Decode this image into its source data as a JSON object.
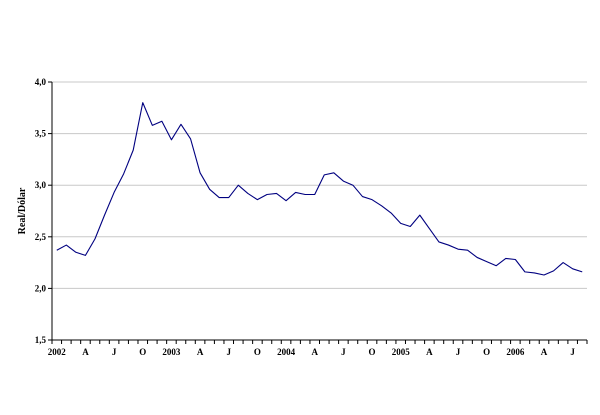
{
  "chart_data": {
    "type": "line",
    "title": "",
    "xlabel": "",
    "ylabel": "Real/Dólar",
    "ylim": [
      1.5,
      4.0
    ],
    "yticks": [
      "1,5",
      "2,0",
      "2,5",
      "3,0",
      "3,5",
      "4,0"
    ],
    "xtick_labels": [
      "2002",
      "A",
      "J",
      "O",
      "2003",
      "A",
      "J",
      "O",
      "2004",
      "A",
      "J",
      "O",
      "2005",
      "A",
      "J",
      "O",
      "2006",
      "A",
      "J"
    ],
    "grid": true,
    "colors": {
      "line": "#000080",
      "grid": "#c8c8c8",
      "axis": "#000000"
    },
    "series": [
      {
        "values": [
          2.37,
          2.42,
          2.35,
          2.32,
          2.48,
          2.71,
          2.93,
          3.11,
          3.34,
          3.8,
          3.58,
          3.62,
          3.44,
          3.59,
          3.45,
          3.12,
          2.96,
          2.88,
          2.88,
          3.0,
          2.92,
          2.86,
          2.91,
          2.92,
          2.85,
          2.93,
          2.91,
          2.91,
          3.1,
          3.12,
          3.04,
          3.0,
          2.89,
          2.86,
          2.8,
          2.73,
          2.63,
          2.6,
          2.71,
          2.58,
          2.45,
          2.42,
          2.38,
          2.37,
          2.3,
          2.26,
          2.22,
          2.29,
          2.28,
          2.16,
          2.15,
          2.13,
          2.17,
          2.25,
          2.19,
          2.16
        ]
      }
    ]
  }
}
